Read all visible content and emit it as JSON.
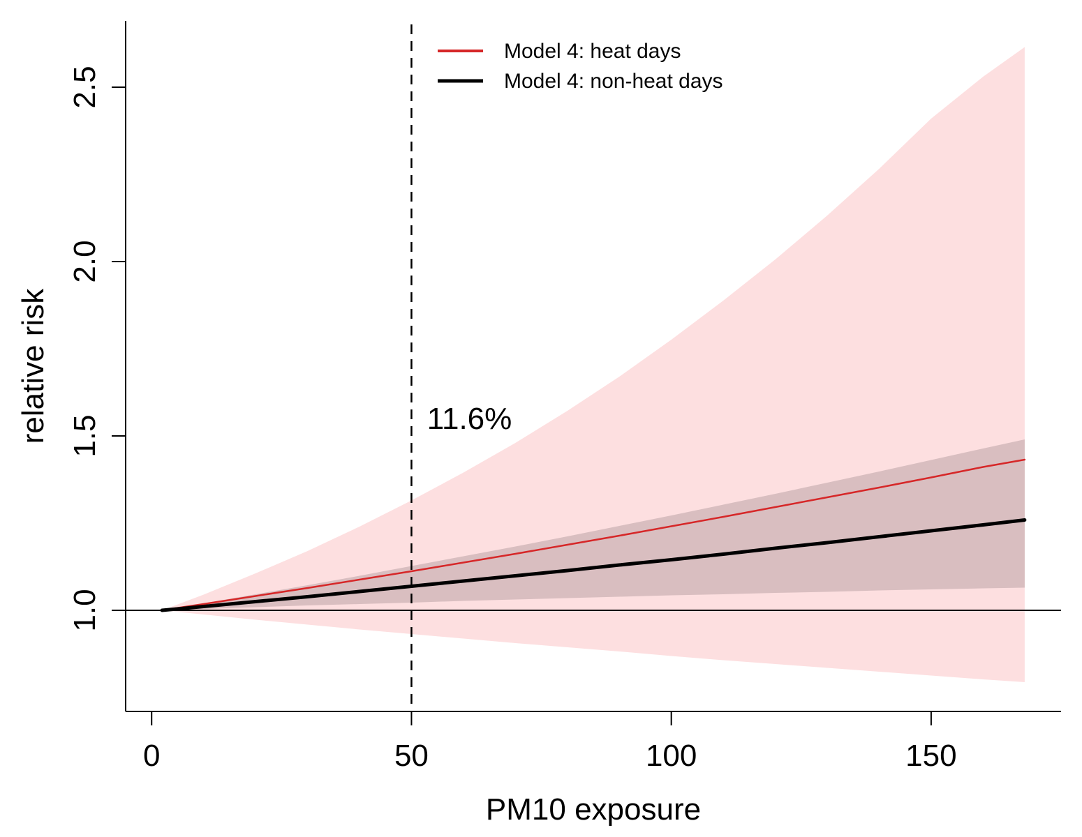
{
  "chart_data": {
    "type": "line",
    "xlabel": "PM10 exposure",
    "ylabel": "relative risk",
    "xlim": [
      -5,
      175
    ],
    "ylim": [
      0.71,
      2.69
    ],
    "x_ticks": [
      0,
      50,
      100,
      150
    ],
    "y_ticks": [
      1.0,
      1.5,
      2.0,
      2.5
    ],
    "x_tick_labels": [
      "0",
      "50",
      "100",
      "150"
    ],
    "y_tick_labels": [
      "1.0",
      "1.5",
      "2.0",
      "2.5"
    ],
    "x": [
      2,
      10,
      20,
      30,
      40,
      50,
      60,
      70,
      80,
      90,
      100,
      110,
      120,
      130,
      140,
      150,
      160,
      168
    ],
    "series": [
      {
        "name": "Model 4: heat days",
        "color": "#d62728",
        "band_color": "#fddfe0",
        "values": [
          1.0,
          1.018,
          1.041,
          1.064,
          1.088,
          1.112,
          1.137,
          1.162,
          1.188,
          1.214,
          1.241,
          1.268,
          1.296,
          1.324,
          1.352,
          1.381,
          1.411,
          1.432
        ],
        "lower": [
          1.0,
          0.988,
          0.973,
          0.959,
          0.945,
          0.932,
          0.919,
          0.906,
          0.894,
          0.882,
          0.869,
          0.857,
          0.846,
          0.835,
          0.824,
          0.813,
          0.802,
          0.794
        ],
        "upper": [
          1.0,
          1.045,
          1.106,
          1.17,
          1.24,
          1.315,
          1.395,
          1.48,
          1.572,
          1.67,
          1.776,
          1.888,
          2.006,
          2.132,
          2.266,
          2.41,
          2.53,
          2.615
        ]
      },
      {
        "name": "Model 4: non-heat days",
        "color": "#000000",
        "band_color": "#d9bec0",
        "values": [
          1.0,
          1.011,
          1.025,
          1.039,
          1.054,
          1.069,
          1.084,
          1.099,
          1.114,
          1.13,
          1.145,
          1.161,
          1.178,
          1.194,
          1.211,
          1.228,
          1.245,
          1.259
        ],
        "lower": [
          1.0,
          1.004,
          1.009,
          1.014,
          1.018,
          1.022,
          1.027,
          1.031,
          1.035,
          1.039,
          1.043,
          1.046,
          1.05,
          1.053,
          1.057,
          1.06,
          1.063,
          1.065
        ],
        "upper": [
          1.0,
          1.02,
          1.046,
          1.072,
          1.099,
          1.127,
          1.155,
          1.183,
          1.212,
          1.242,
          1.272,
          1.303,
          1.334,
          1.366,
          1.398,
          1.431,
          1.464,
          1.49
        ]
      }
    ],
    "reference_lines": [
      {
        "axis": "y",
        "value": 1.0,
        "style": "solid"
      },
      {
        "axis": "x",
        "value": 50,
        "style": "dashed"
      }
    ],
    "annotations": [
      {
        "text": "11.6%",
        "x": 53,
        "y": 1.55
      }
    ],
    "legend": {
      "placement": "top-center"
    },
    "grid": false
  }
}
